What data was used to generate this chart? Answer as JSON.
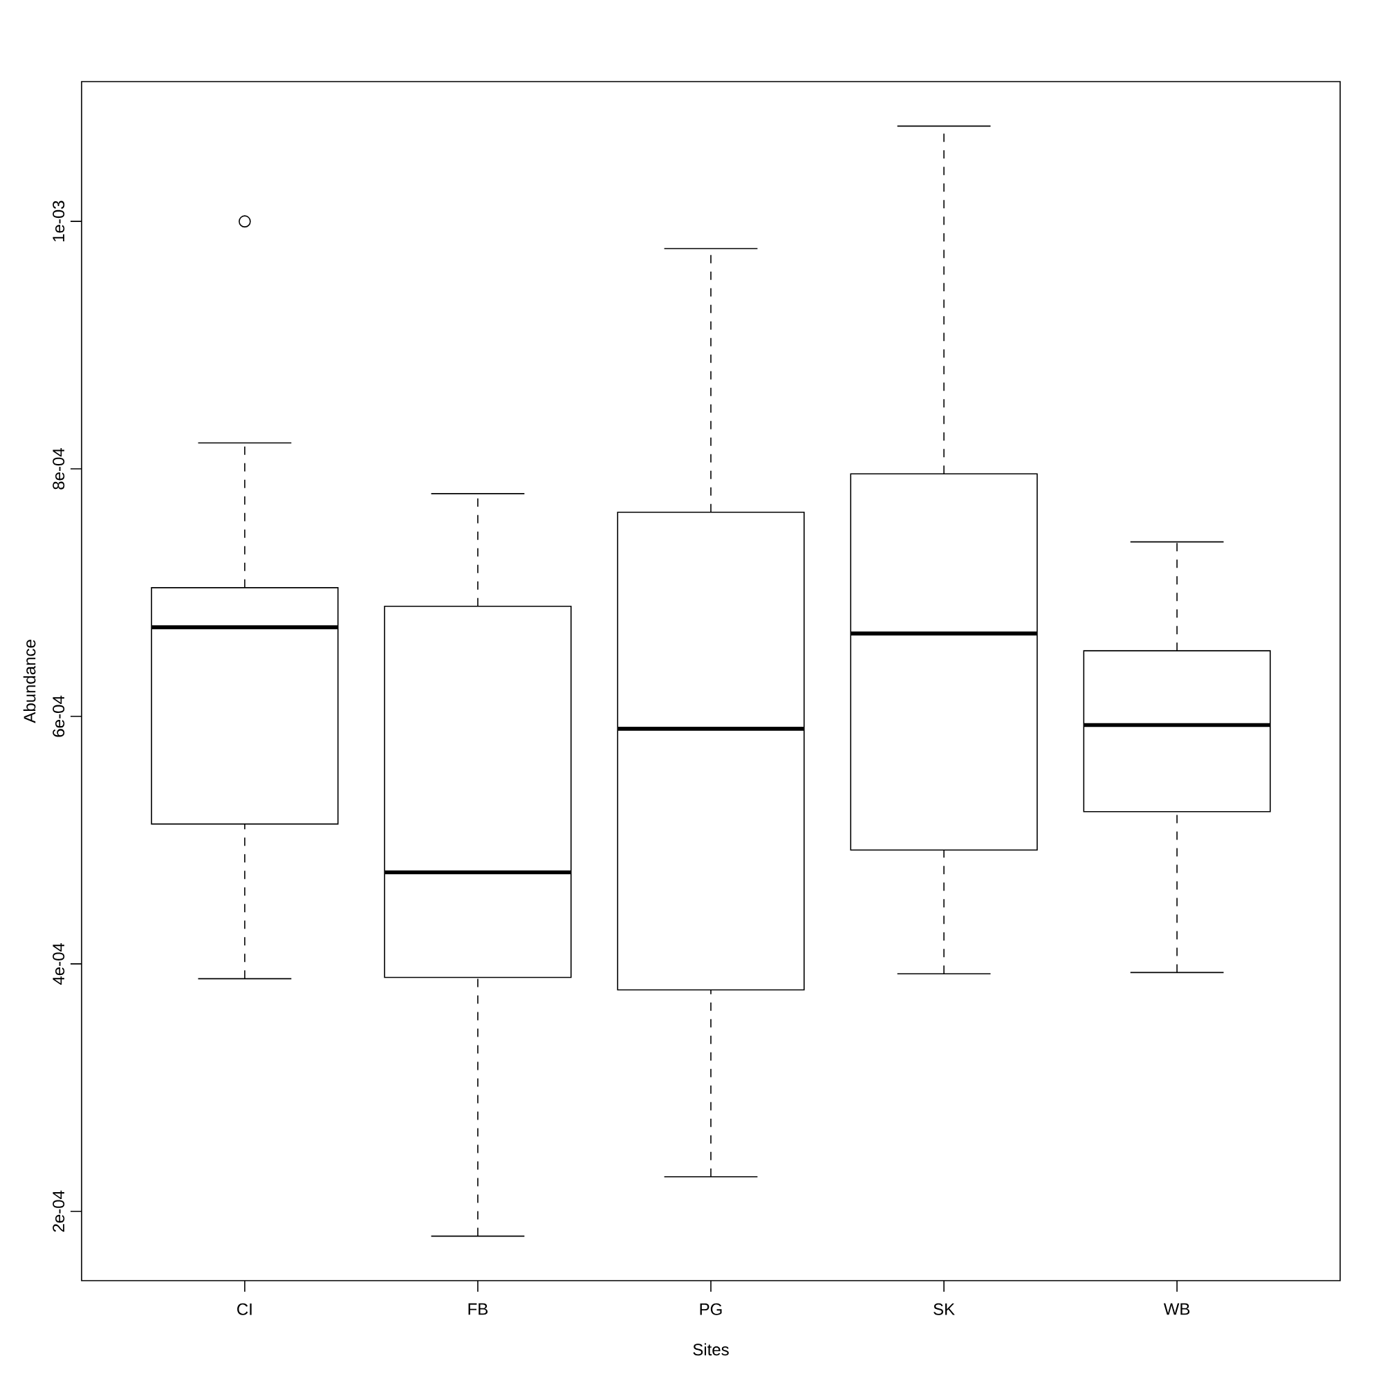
{
  "chart_data": {
    "type": "box",
    "xlabel": "Sites",
    "ylabel": "Abundance",
    "categories": [
      "CI",
      "FB",
      "PG",
      "SK",
      "WB"
    ],
    "boxes": [
      {
        "low": 0.000388,
        "q1": 0.000513,
        "median": 0.000672,
        "q3": 0.000704,
        "high": 0.000821,
        "outliers": [
          0.001
        ]
      },
      {
        "low": 0.00018,
        "q1": 0.000389,
        "median": 0.000474,
        "q3": 0.000689,
        "high": 0.00078
      },
      {
        "low": 0.000228,
        "q1": 0.000379,
        "median": 0.00059,
        "q3": 0.000765,
        "high": 0.000978
      },
      {
        "low": 0.000392,
        "q1": 0.000492,
        "median": 0.000667,
        "q3": 0.000796,
        "high": 0.001077
      },
      {
        "low": 0.000393,
        "q1": 0.000523,
        "median": 0.000593,
        "q3": 0.000653,
        "high": 0.000741
      }
    ],
    "ylim": [
      0.000144,
      0.001113
    ],
    "yticks": [
      {
        "value": 0.0002,
        "label": "2e-04"
      },
      {
        "value": 0.0004,
        "label": "4e-04"
      },
      {
        "value": 0.0006,
        "label": "6e-04"
      },
      {
        "value": 0.0008,
        "label": "8e-04"
      },
      {
        "value": 0.001,
        "label": "1e-03"
      }
    ]
  }
}
